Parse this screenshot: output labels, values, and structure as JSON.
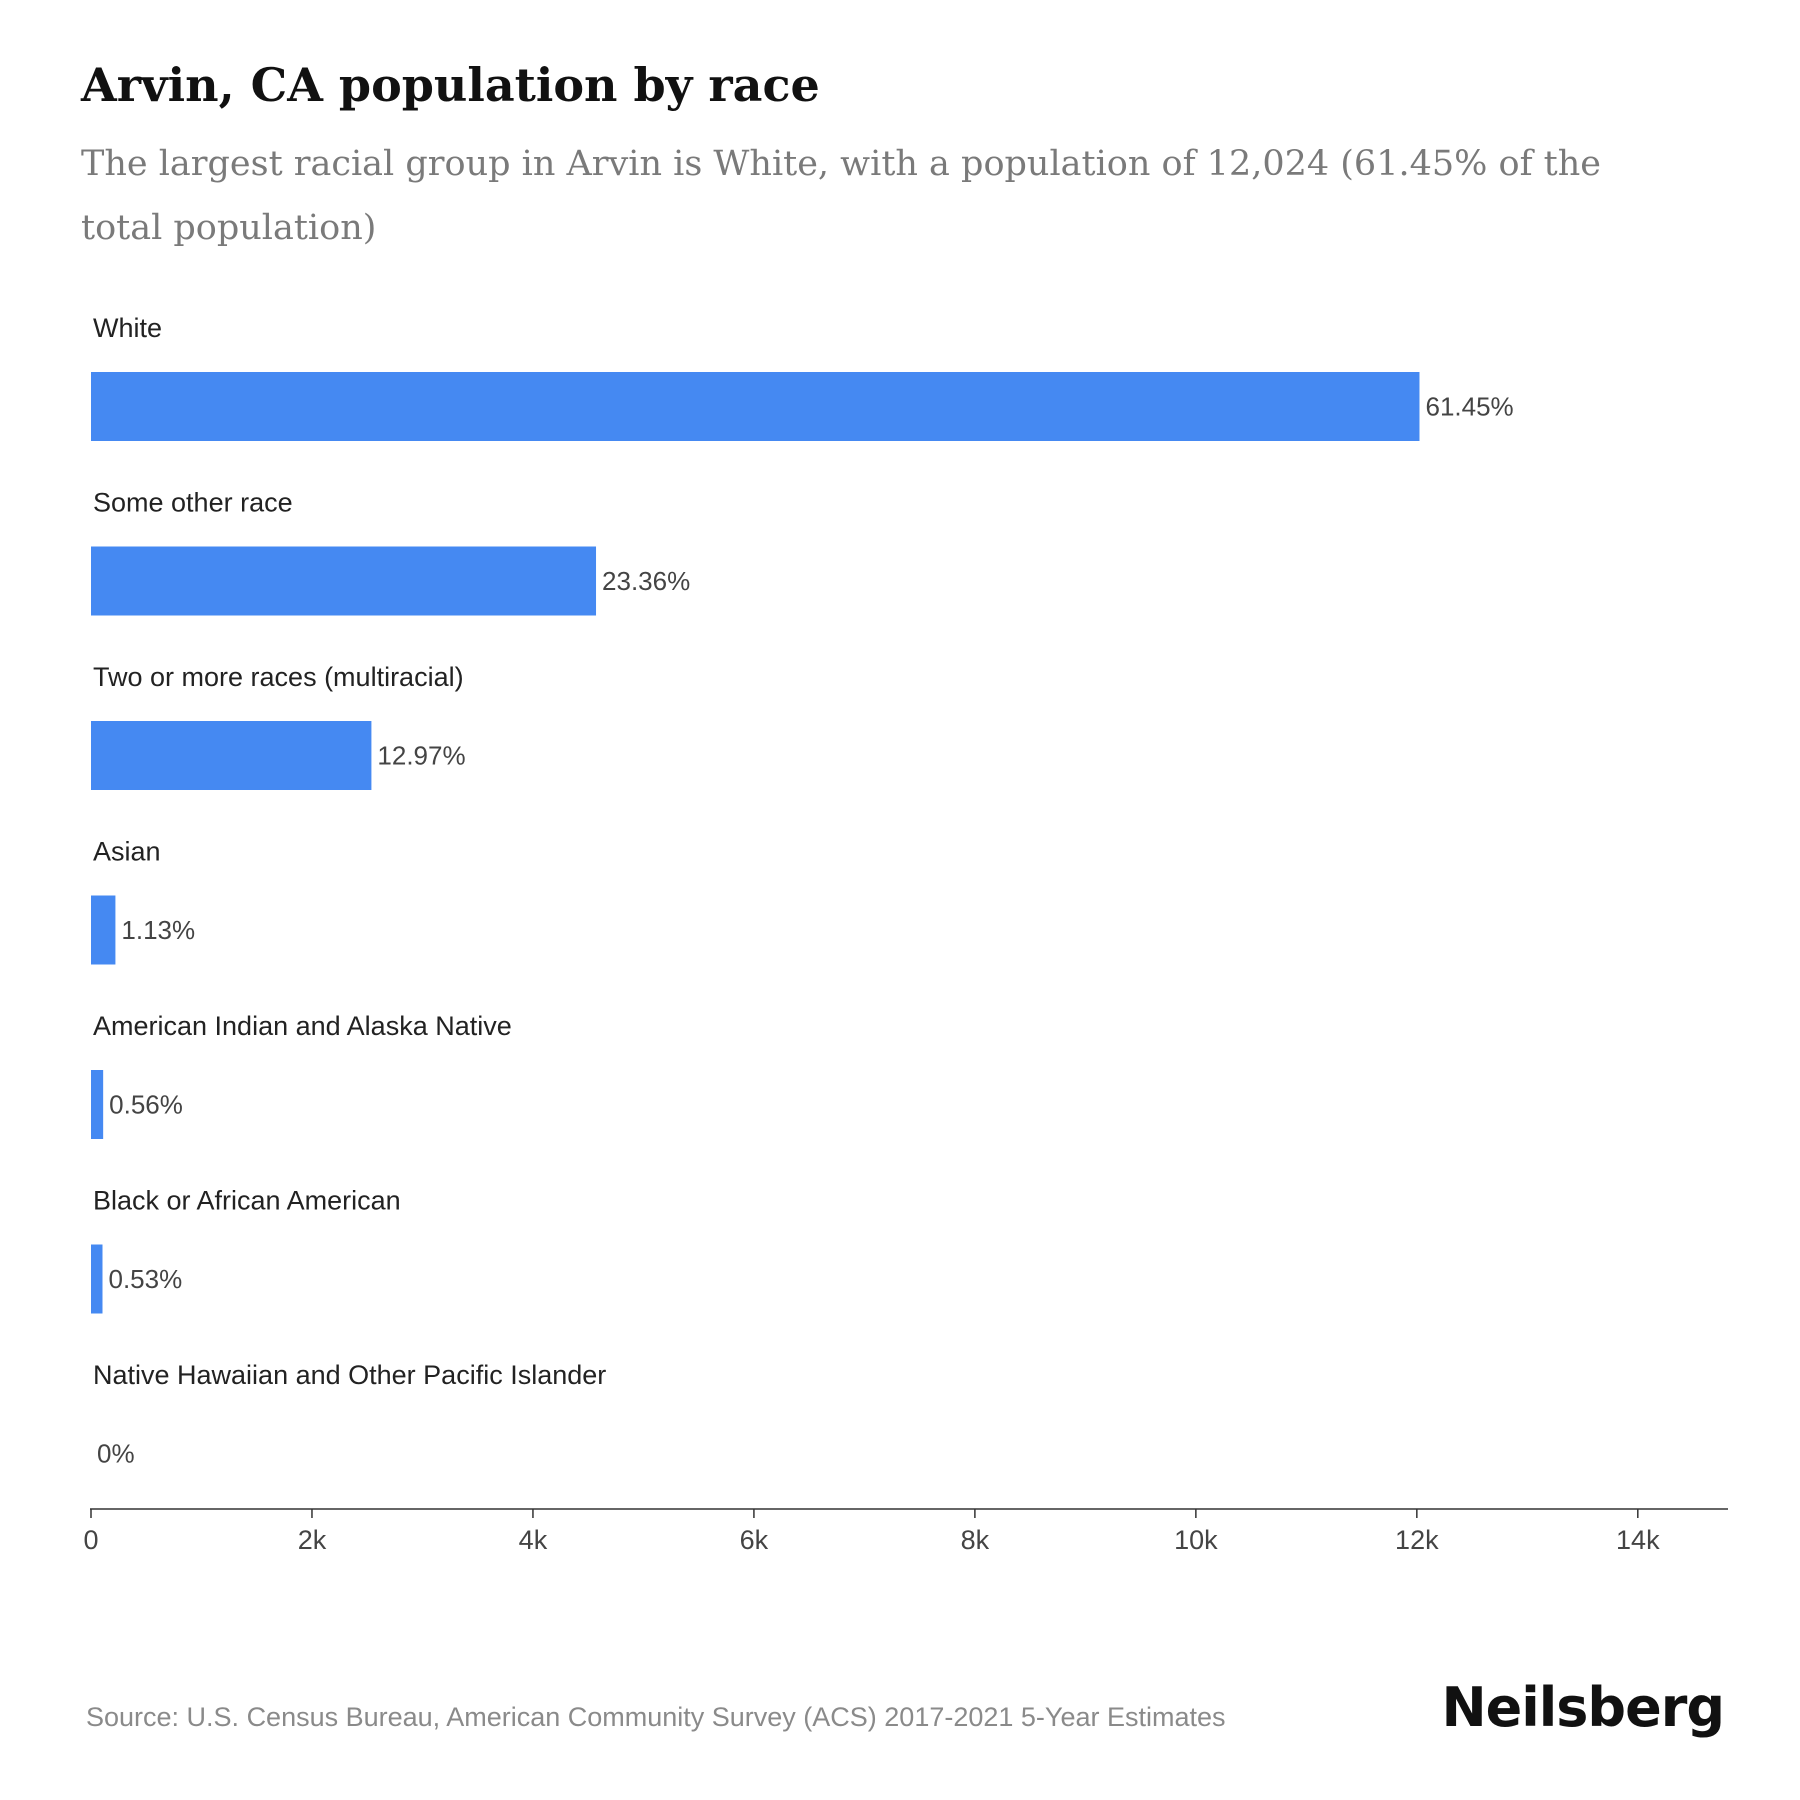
{
  "chart_data": {
    "type": "bar",
    "orientation": "horizontal",
    "title": "Arvin, CA population by race",
    "subtitle": "The largest racial group in Arvin is White, with a population of 12,024 (61.45% of the total population)",
    "categories": [
      "White",
      "Some other race",
      "Two or more races (multiracial)",
      "Asian",
      "American Indian and Alaska Native",
      "Black or African American",
      "Native Hawaiian and Other Pacific Islander"
    ],
    "values": [
      12024,
      4571,
      2538,
      221,
      110,
      104,
      0
    ],
    "value_labels": [
      "61.45%",
      "23.36%",
      "12.97%",
      "1.13%",
      "0.56%",
      "0.53%",
      "0%"
    ],
    "xlim": [
      0,
      14400
    ],
    "ticks": [
      0,
      2000,
      4000,
      6000,
      8000,
      10000,
      12000,
      14000
    ],
    "tick_labels": [
      "0",
      "2k",
      "4k",
      "6k",
      "8k",
      "10k",
      "12k",
      "14k"
    ],
    "bar_color": "#4589f2",
    "grid": false,
    "legend": "none"
  },
  "footer": {
    "source": "Source: U.S. Census Bureau, American Community Survey (ACS) 2017-2021 5-Year Estimates",
    "brand": "Neilsberg"
  }
}
